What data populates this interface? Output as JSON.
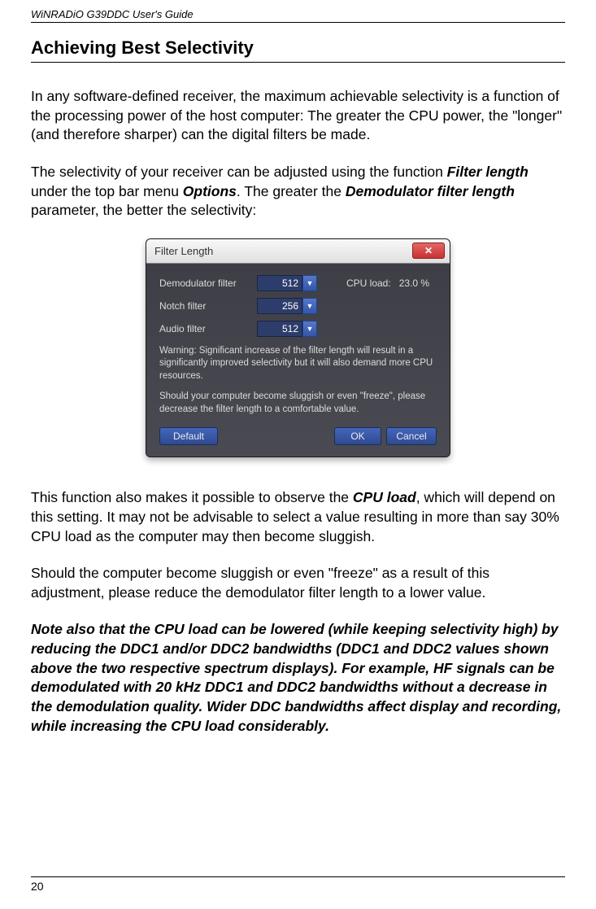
{
  "header": "WiNRADiO G39DDC User's Guide",
  "title": "Achieving Best Selectivity",
  "para1": "In any software-defined receiver, the maximum achievable selectivity is a function of the processing power of the host computer: The greater the CPU power, the \"longer\" (and therefore sharper) can the digital filters be made.",
  "para2_a": "The selectivity of your receiver can be adjusted using the function ",
  "para2_b": "Filter length",
  "para2_c": " under the top bar menu ",
  "para2_d": "Options",
  "para2_e": ". The greater the ",
  "para2_f": "Demodulator filter length",
  "para2_g": " parameter, the better the selectivity:",
  "dialog": {
    "title": "Filter Length",
    "rows": [
      {
        "label": "Demodulator filter",
        "value": "512"
      },
      {
        "label": "Notch filter",
        "value": "256"
      },
      {
        "label": "Audio filter",
        "value": "512"
      }
    ],
    "cpu_label": "CPU load:",
    "cpu_value": "23.0 %",
    "warning1": "Warning: Significant increase of the filter length will result in a significantly improved selectivity but it will also demand more CPU resources.",
    "warning2": "Should your computer become sluggish or even \"freeze\", please decrease the filter length to a comfortable value.",
    "btn_default": "Default",
    "btn_ok": "OK",
    "btn_cancel": "Cancel",
    "colors": {
      "body_bg": "#4a4a52",
      "input_bg": "#2d3d6b",
      "btn_bg_top": "#4466bb",
      "btn_bg_bottom": "#2e4a8f",
      "text": "#dcdcdc",
      "close_bg": "#c83232"
    }
  },
  "para3_a": "This function also makes it possible to observe the ",
  "para3_b": "CPU load",
  "para3_c": ", which will depend on this setting. It may not be advisable to select a value resulting in more than say 30% CPU load as the computer may then become sluggish.",
  "para4": "Should the computer become sluggish or even \"freeze\" as a result of this adjustment, please reduce the demodulator filter length to a lower value.",
  "para5": "Note also that the CPU load can be lowered (while keeping selectivity high) by reducing the DDC1 and/or DDC2 bandwidths (DDC1 and DDC2 values shown above the two respective spectrum displays). For example, HF signals can be demodulated with 20 kHz DDC1 and DDC2 bandwidths without a decrease in the demodulation quality. Wider DDC bandwidths affect display and recording, while increasing the CPU load considerably.",
  "page_number": "20"
}
